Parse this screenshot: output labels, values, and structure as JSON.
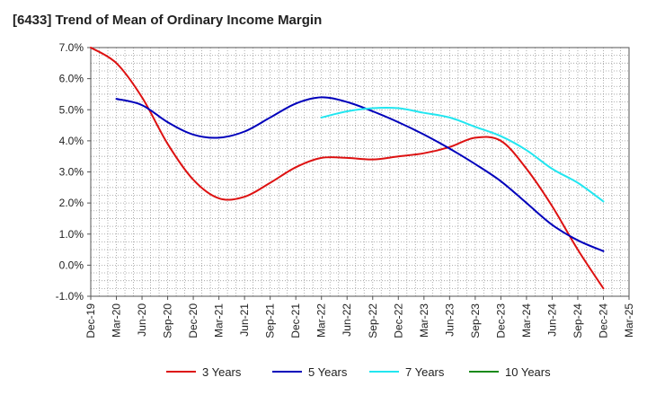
{
  "chart_data": {
    "type": "line",
    "title": "[6433]  Trend of Mean of Ordinary Income Margin",
    "xlabel": "",
    "ylabel": "",
    "categories": [
      "Dec-19",
      "Mar-20",
      "Jun-20",
      "Sep-20",
      "Dec-20",
      "Mar-21",
      "Jun-21",
      "Sep-21",
      "Dec-21",
      "Mar-22",
      "Jun-22",
      "Sep-22",
      "Dec-22",
      "Mar-23",
      "Jun-23",
      "Sep-23",
      "Dec-23",
      "Mar-24",
      "Jun-24",
      "Sep-24",
      "Dec-24",
      "Mar-25"
    ],
    "ylim": [
      -1.0,
      7.0
    ],
    "yticks": [
      "7.0%",
      "6.0%",
      "5.0%",
      "4.0%",
      "3.0%",
      "2.0%",
      "1.0%",
      "0.0%",
      "-1.0%"
    ],
    "ytick_values": [
      7,
      6,
      5,
      4,
      3,
      2,
      1,
      0,
      -1
    ],
    "grid": true,
    "legend_position": "bottom",
    "series": [
      {
        "name": "3 Years",
        "color": "#dd1111",
        "values": [
          7.0,
          6.5,
          5.4,
          3.9,
          2.75,
          2.15,
          2.2,
          2.65,
          3.15,
          3.45,
          3.45,
          3.4,
          3.5,
          3.6,
          3.8,
          4.1,
          4.0,
          3.1,
          1.9,
          0.5,
          -0.75,
          null
        ]
      },
      {
        "name": "5 Years",
        "color": "#0000bb",
        "values": [
          null,
          5.35,
          5.15,
          4.6,
          4.2,
          4.1,
          4.3,
          4.75,
          5.2,
          5.4,
          5.25,
          4.95,
          4.6,
          4.2,
          3.75,
          3.25,
          2.7,
          2.0,
          1.3,
          0.8,
          0.45,
          null
        ]
      },
      {
        "name": "7 Years",
        "color": "#22e6f0",
        "values": [
          null,
          null,
          null,
          null,
          null,
          null,
          null,
          null,
          null,
          4.75,
          4.95,
          5.05,
          5.05,
          4.9,
          4.75,
          4.45,
          4.15,
          3.7,
          3.1,
          2.65,
          2.05,
          null
        ]
      },
      {
        "name": "10 Years",
        "color": "#1a8a1a",
        "values": [
          null,
          null,
          null,
          null,
          null,
          null,
          null,
          null,
          null,
          null,
          null,
          null,
          null,
          null,
          null,
          null,
          null,
          null,
          null,
          null,
          null,
          null
        ]
      }
    ]
  }
}
